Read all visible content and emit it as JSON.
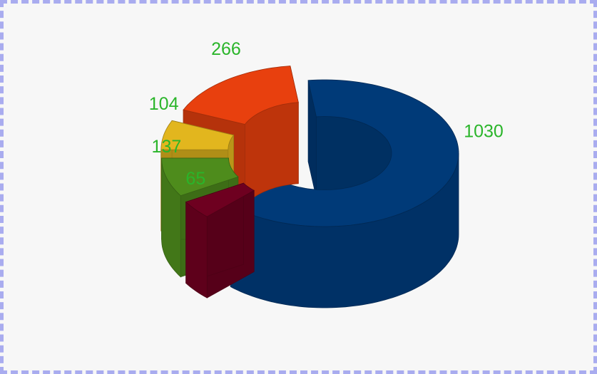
{
  "chart_data": {
    "type": "donut3d",
    "values": [
      1030,
      65,
      137,
      104,
      266
    ],
    "colors": [
      "#003a78",
      "#6e0020",
      "#4e8c1c",
      "#e2b61e",
      "#e8400e"
    ]
  }
}
